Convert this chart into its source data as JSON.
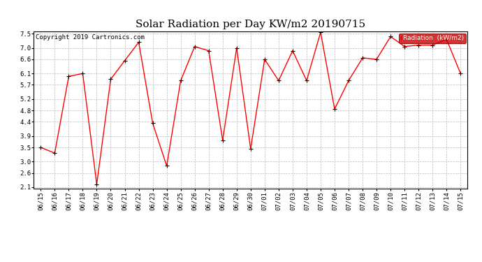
{
  "title": "Solar Radiation per Day KW/m2 20190715",
  "copyright": "Copyright 2019 Cartronics.com",
  "legend_label": "Radiation  (kW/m2)",
  "line_color": "red",
  "marker_color": "black",
  "background_color": "white",
  "grid_color": "#bbbbbb",
  "ylabel_values": [
    2.1,
    2.6,
    3.0,
    3.5,
    3.9,
    4.4,
    4.8,
    5.2,
    5.7,
    6.1,
    6.6,
    7.0,
    7.5
  ],
  "dates": [
    "06/15",
    "06/16",
    "06/17",
    "06/18",
    "06/19",
    "06/20",
    "06/21",
    "06/22",
    "06/23",
    "06/24",
    "06/25",
    "06/26",
    "06/27",
    "06/28",
    "06/29",
    "06/30",
    "07/01",
    "07/02",
    "07/03",
    "07/04",
    "07/05",
    "07/06",
    "07/07",
    "07/08",
    "07/09",
    "07/10",
    "07/11",
    "07/12",
    "07/13",
    "07/14",
    "07/15"
  ],
  "values": [
    3.5,
    3.3,
    6.0,
    6.1,
    2.2,
    5.9,
    6.55,
    7.2,
    4.35,
    2.85,
    5.85,
    7.05,
    6.9,
    3.75,
    7.0,
    3.45,
    6.6,
    5.85,
    6.9,
    5.85,
    7.55,
    4.85,
    5.85,
    6.65,
    6.6,
    7.4,
    7.05,
    7.1,
    7.1,
    7.3,
    6.1
  ],
  "ylim": [
    2.1,
    7.5
  ],
  "title_fontsize": 11,
  "tick_fontsize": 6.5,
  "copyright_fontsize": 6.5,
  "legend_bg": "#cc0000",
  "legend_text_color": "white"
}
